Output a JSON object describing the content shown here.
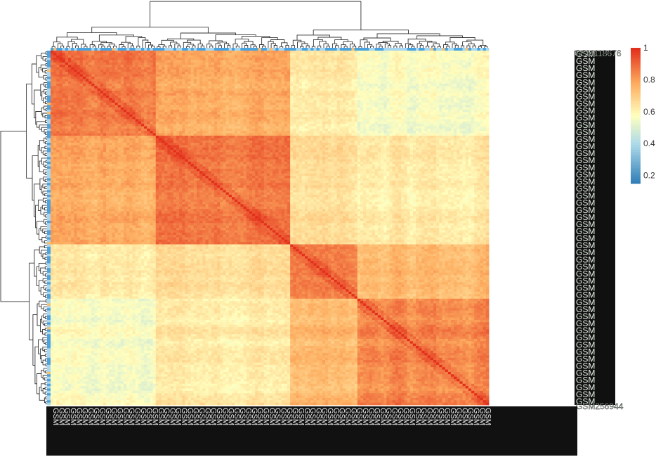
{
  "chart_data": {
    "type": "heatmap",
    "title": "",
    "n_samples": 150,
    "row_labels_visible": [
      "GSM118676",
      "GSM256944"
    ],
    "column_labels": "GSM sample IDs (dense, overlapping)",
    "clusters": [
      {
        "id": "A",
        "size": 36
      },
      {
        "id": "B",
        "size": 46
      },
      {
        "id": "C",
        "size": 23
      },
      {
        "id": "D",
        "size": 45
      }
    ],
    "cluster_order": [
      "A",
      "B",
      "C",
      "D"
    ],
    "mean_correlation": [
      [
        0.86,
        0.78,
        0.62,
        0.56
      ],
      [
        0.78,
        0.88,
        0.66,
        0.63
      ],
      [
        0.62,
        0.66,
        0.85,
        0.74
      ],
      [
        0.56,
        0.63,
        0.74,
        0.84
      ]
    ],
    "diagonal_value": 1,
    "value_range": [
      0.15,
      1
    ],
    "color_scale": {
      "stops": [
        {
          "value": 0.15,
          "color": "#2c7bb6"
        },
        {
          "value": 0.4,
          "color": "#abd9e9"
        },
        {
          "value": 0.58,
          "color": "#ffffbf"
        },
        {
          "value": 0.78,
          "color": "#fdae61"
        },
        {
          "value": 1.0,
          "color": "#e3301c"
        }
      ],
      "ticks": [
        1,
        0.8,
        0.6,
        0.4,
        0.2
      ],
      "tick_labels": [
        "1",
        "0.8",
        "0.6",
        "0.4",
        "0.2"
      ]
    },
    "annotation_bar_colors": {
      "group1": "#4aa3df",
      "group2": "#a8d7f2",
      "group3": "#f5c071"
    },
    "grid": false,
    "legend_position": "right",
    "dendrograms": [
      "top",
      "left"
    ]
  }
}
